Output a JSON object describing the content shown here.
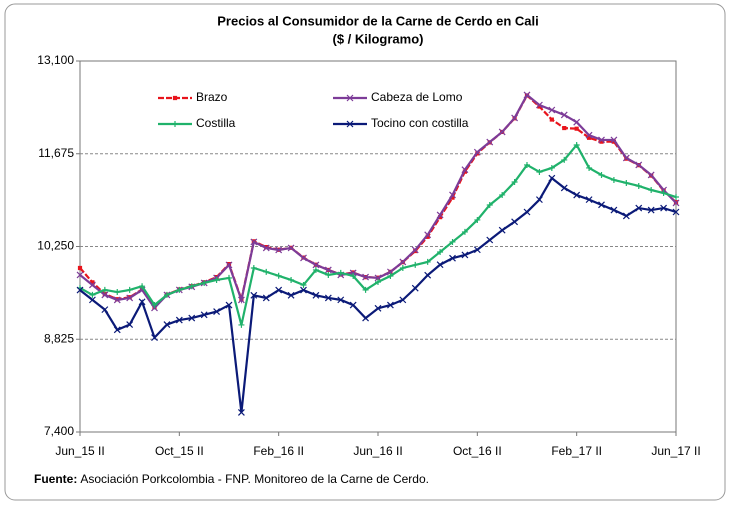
{
  "chart_data": {
    "type": "line",
    "title": "Precios al Consumidor de la Carne de Cerdo en Cali",
    "subtitle": "($ / Kilogramo)",
    "source_label": "Fuente:",
    "source": "Asociación Porkcolombia - FNP.  Monitoreo de la Carne de Cerdo.",
    "categories": [
      "Jun_15 II",
      null,
      null,
      null,
      null,
      null,
      null,
      null,
      "Oct_15 II",
      null,
      null,
      null,
      null,
      null,
      null,
      null,
      "Feb_16 II",
      null,
      null,
      null,
      null,
      null,
      null,
      null,
      "Jun_16 II",
      null,
      null,
      null,
      null,
      null,
      null,
      null,
      "Oct_16 II",
      null,
      null,
      null,
      null,
      null,
      null,
      null,
      "Feb_17 II",
      null,
      null,
      null,
      null,
      null,
      null,
      null,
      "Jun_17 II"
    ],
    "ylim": [
      7400,
      13100
    ],
    "yticks": [
      {
        "value": 7400,
        "label": "7,400"
      },
      {
        "value": 8825,
        "label": "8,825"
      },
      {
        "value": 10250,
        "label": "10,250"
      },
      {
        "value": 11675,
        "label": "11,675"
      },
      {
        "value": 13100,
        "label": "13,100"
      }
    ],
    "grid": true,
    "series": [
      {
        "name": "Brazo",
        "color": "#e8141c",
        "marker": "dot",
        "values": [
          9920,
          9700,
          9520,
          9440,
          9470,
          9590,
          9320,
          9510,
          9590,
          9640,
          9700,
          9780,
          9980,
          9440,
          10330,
          10240,
          10200,
          10230,
          10080,
          9970,
          9890,
          9820,
          9850,
          9780,
          9770,
          9860,
          10010,
          10180,
          10400,
          10700,
          11000,
          11400,
          11680,
          11850,
          12010,
          12220,
          12570,
          12400,
          12200,
          12070,
          12060,
          11920,
          11860,
          11860,
          11600,
          11500,
          11340,
          11110,
          10930
        ]
      },
      {
        "name": "Cabeza de Lomo",
        "color": "#7d3c98",
        "marker": "x",
        "values": [
          9813,
          9659,
          9506,
          9429,
          9460,
          9583,
          9306,
          9506,
          9583,
          9630,
          9690,
          9767,
          9967,
          9429,
          10320,
          10228,
          10197,
          10228,
          10074,
          9967,
          9890,
          9813,
          9844,
          9780,
          9767,
          9860,
          10013,
          10197,
          10430,
          10735,
          11042,
          11430,
          11700,
          11855,
          12010,
          12225,
          12578,
          12424,
          12347,
          12271,
          12160,
          11960,
          11887,
          11887,
          11610,
          11503,
          11349,
          11118,
          10920
        ]
      },
      {
        "name": "Costilla",
        "color": "#20b26b",
        "marker": "plus",
        "values": [
          9613,
          9506,
          9583,
          9550,
          9583,
          9640,
          9352,
          9506,
          9583,
          9640,
          9690,
          9736,
          9767,
          9045,
          9920,
          9860,
          9800,
          9736,
          9659,
          9890,
          9813,
          9844,
          9797,
          9583,
          9705,
          9797,
          9920,
          9967,
          10013,
          10166,
          10320,
          10474,
          10658,
          10888,
          11042,
          11241,
          11503,
          11395,
          11457,
          11580,
          11810,
          11457,
          11349,
          11272,
          11226,
          11180,
          11118,
          11072,
          11010
        ]
      },
      {
        "name": "Tocino con costilla",
        "color": "#0b1a78",
        "marker": "x",
        "values": [
          9580,
          9430,
          9280,
          8970,
          9050,
          9400,
          8850,
          9050,
          9120,
          9150,
          9200,
          9250,
          9350,
          7700,
          9500,
          9460,
          9580,
          9500,
          9580,
          9500,
          9460,
          9430,
          9350,
          9150,
          9300,
          9350,
          9430,
          9610,
          9810,
          9970,
          10070,
          10120,
          10200,
          10350,
          10500,
          10630,
          10780,
          10970,
          11300,
          11150,
          11040,
          10970,
          10890,
          10810,
          10720,
          10840,
          10810,
          10840,
          10780
        ]
      }
    ],
    "legend": "inside-top"
  }
}
